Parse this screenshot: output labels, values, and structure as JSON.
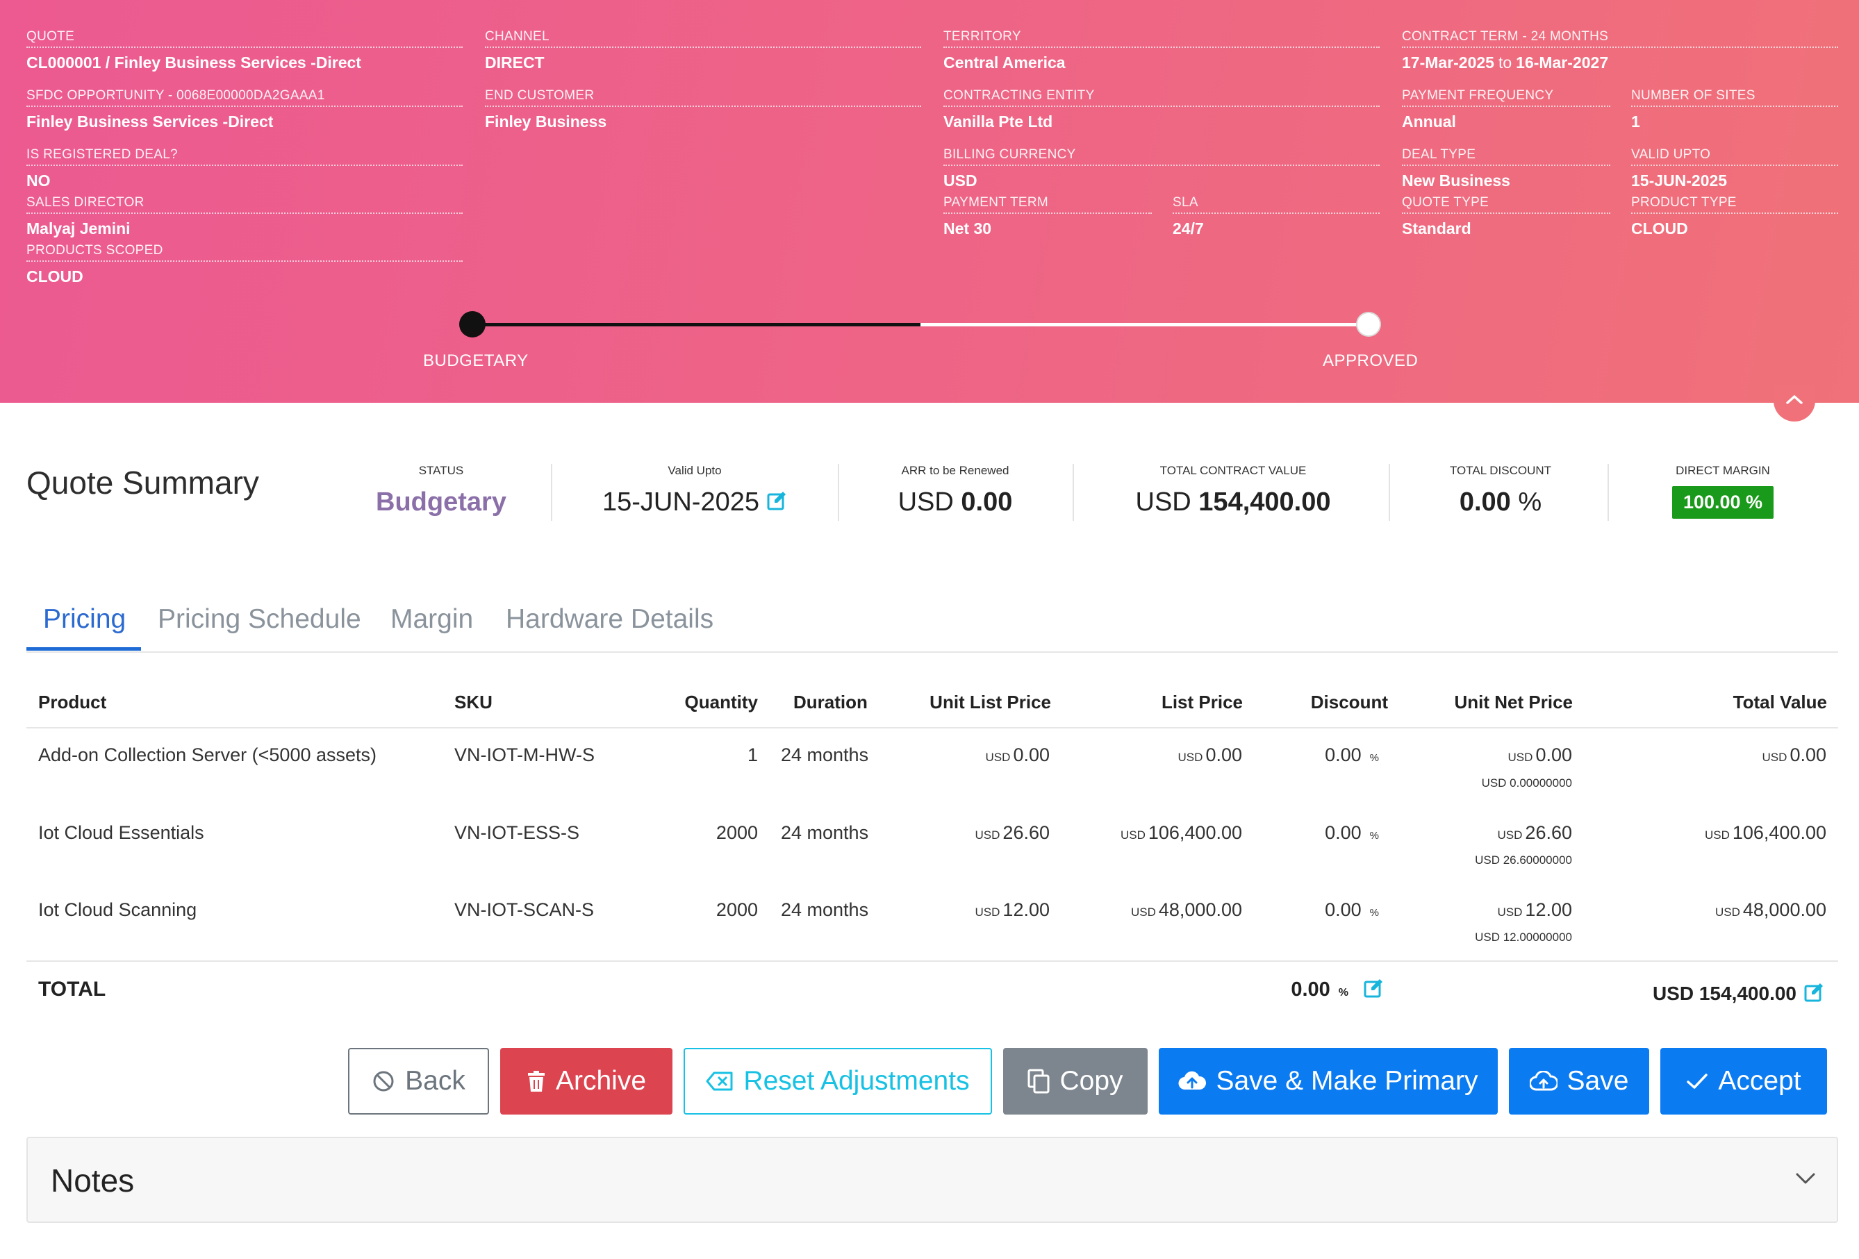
{
  "header": {
    "fields": {
      "quote": {
        "label": "QUOTE",
        "value": "CL000001 / Finley Business Services -Direct"
      },
      "channel": {
        "label": "CHANNEL",
        "value": "DIRECT"
      },
      "territory": {
        "label": "TERRITORY",
        "value": "Central America"
      },
      "contract_term": {
        "label": "CONTRACT TERM - 24 MONTHS",
        "start": "17-Mar-2025",
        "connector": "to",
        "end": "16-Mar-2027"
      },
      "sfdc": {
        "label": "SFDC OPPORTUNITY - 0068e00000DA2GAAA1",
        "value": "Finley Business Services -Direct"
      },
      "end_customer": {
        "label": "END CUSTOMER",
        "value": "Finley Business"
      },
      "contracting_entity": {
        "label": "CONTRACTING ENTITY",
        "value": "Vanilla Pte Ltd"
      },
      "payment_frequency": {
        "label": "PAYMENT FREQUENCY",
        "value": "Annual"
      },
      "number_of_sites": {
        "label": "NUMBER OF SITES",
        "value": "1"
      },
      "is_registered": {
        "label": "IS REGISTERED DEAL?",
        "value": "NO"
      },
      "billing_currency": {
        "label": "BILLING CURRENCY",
        "value": "USD"
      },
      "deal_type": {
        "label": "DEAL TYPE",
        "value": "New Business"
      },
      "valid_upto": {
        "label": "VALID UPTO",
        "value": "15-JUN-2025"
      },
      "sales_director": {
        "label": "SALES DIRECTOR",
        "value": "Malyaj Jemini"
      },
      "payment_term": {
        "label": "PAYMENT TERM",
        "value": "Net 30"
      },
      "sla": {
        "label": "SLA",
        "value": "24/7"
      },
      "quote_type": {
        "label": "QUOTE TYPE",
        "value": "Standard"
      },
      "product_type": {
        "label": "PRODUCT TYPE",
        "value": "CLOUD"
      },
      "products_scoped": {
        "label": "PRODUCTS SCOPED",
        "value": "CLOUD"
      }
    },
    "progress": {
      "start_label": "BUDGETARY",
      "end_label": "APPROVED",
      "completed_fraction": 0.5
    }
  },
  "summary": {
    "title": "Quote Summary",
    "status": {
      "label": "STATUS",
      "value": "Budgetary"
    },
    "valid_upto": {
      "label": "Valid Upto",
      "value": "15-JUN-2025"
    },
    "arr": {
      "label": "ARR to be Renewed",
      "currency": "USD",
      "value": "0.00"
    },
    "tcv": {
      "label": "TOTAL CONTRACT VALUE",
      "currency": "USD",
      "value": "154,400.00"
    },
    "discount": {
      "label": "TOTAL DISCOUNT",
      "value": "0.00",
      "unit": "%"
    },
    "margin": {
      "label": "DIRECT MARGIN",
      "value": "100.00 %"
    }
  },
  "tabs": [
    "Pricing",
    "Pricing Schedule",
    "Margin",
    "Hardware Details"
  ],
  "table": {
    "columns": [
      "Product",
      "SKU",
      "Quantity",
      "Duration",
      "Unit List Price",
      "List Price",
      "Discount",
      "Unit Net Price",
      "Total Value"
    ],
    "currency": "USD",
    "pct": "%",
    "rows": [
      {
        "product": "Add-on Collection Server (<5000 assets)",
        "sku": "VN-IOT-M-HW-S",
        "quantity": "1",
        "duration": "24 months",
        "unit_list_price": "0.00",
        "list_price": "0.00",
        "discount": "0.00",
        "unit_net_price": "0.00",
        "unit_net_precise": "USD 0.00000000",
        "total_value": "0.00"
      },
      {
        "product": "Iot Cloud Essentials",
        "sku": "VN-IOT-ESS-S",
        "quantity": "2000",
        "duration": "24 months",
        "unit_list_price": "26.60",
        "list_price": "106,400.00",
        "discount": "0.00",
        "unit_net_price": "26.60",
        "unit_net_precise": "USD 26.60000000",
        "total_value": "106,400.00"
      },
      {
        "product": "Iot Cloud Scanning",
        "sku": "VN-IOT-SCAN-S",
        "quantity": "2000",
        "duration": "24 months",
        "unit_list_price": "12.00",
        "list_price": "48,000.00",
        "discount": "0.00",
        "unit_net_price": "12.00",
        "unit_net_precise": "USD 12.00000000",
        "total_value": "48,000.00"
      }
    ],
    "total": {
      "label": "TOTAL",
      "discount": "0.00",
      "value": "USD 154,400.00"
    }
  },
  "buttons": {
    "back": "Back",
    "archive": "Archive",
    "reset": "Reset Adjustments",
    "copy": "Copy",
    "save_primary": "Save & Make Primary",
    "save": "Save",
    "accept": "Accept"
  },
  "notes": {
    "title": "Notes"
  },
  "colors": {
    "header_start": "#ec5a91",
    "header_end": "#f07179",
    "primary": "#0b7bf2",
    "danger": "#dc4550",
    "info": "#17c1e3",
    "success": "#1a9a1a",
    "tab_active": "#2b6ad0"
  }
}
